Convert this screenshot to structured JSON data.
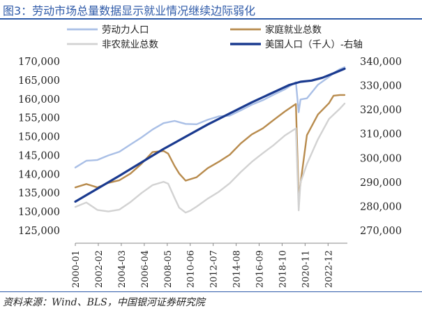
{
  "figure": {
    "title": "图3：劳动市场总量数据显示就业情况继续边际弱化",
    "source": "资料来源：Wind、BLS，中国银河证券研究院"
  },
  "chart_data": {
    "type": "line",
    "x_ticks": [
      "2000-01",
      "2002-02",
      "2004-03",
      "2006-04",
      "2008-05",
      "2010-06",
      "2012-07",
      "2014-08",
      "2016-09",
      "2018-10",
      "2020-11",
      "2022-12"
    ],
    "y_left": {
      "ylim": [
        125000,
        170000
      ],
      "ticks": [
        "125,000",
        "130,000",
        "135,000",
        "140,000",
        "145,000",
        "150,000",
        "155,000",
        "160,000",
        "165,000",
        "170,000"
      ]
    },
    "y_right": {
      "ylim": [
        270000,
        340000
      ],
      "ticks": [
        "270,000",
        "280,000",
        "290,000",
        "300,000",
        "310,000",
        "320,000",
        "330,000",
        "340,000"
      ],
      "label_suffix": "-右轴"
    },
    "legend": {
      "placement": "top",
      "ncols": 2
    },
    "series": [
      {
        "name": "劳动力人口",
        "axis": "left",
        "color": "#a9bfe6",
        "width": 2.4,
        "points": [
          [
            "2000-01",
            141800
          ],
          [
            "2001-01",
            143600
          ],
          [
            "2002-01",
            143800
          ],
          [
            "2003-01",
            145000
          ],
          [
            "2004-01",
            146000
          ],
          [
            "2005-01",
            147900
          ],
          [
            "2006-01",
            149800
          ],
          [
            "2007-01",
            151900
          ],
          [
            "2008-01",
            153600
          ],
          [
            "2009-01",
            154200
          ],
          [
            "2010-01",
            153400
          ],
          [
            "2011-01",
            153300
          ],
          [
            "2012-01",
            154500
          ],
          [
            "2013-01",
            155400
          ],
          [
            "2014-01",
            155600
          ],
          [
            "2015-01",
            157000
          ],
          [
            "2016-01",
            158500
          ],
          [
            "2017-01",
            159700
          ],
          [
            "2018-01",
            161200
          ],
          [
            "2019-01",
            162600
          ],
          [
            "2020-01",
            164500
          ],
          [
            "2020-04",
            156500
          ],
          [
            "2020-06",
            159900
          ],
          [
            "2021-01",
            160200
          ],
          [
            "2022-01",
            163800
          ],
          [
            "2023-01",
            165900
          ],
          [
            "2023-06",
            166900
          ],
          [
            "2024-01",
            168000
          ],
          [
            "2024-06",
            168500
          ]
        ]
      },
      {
        "name": "家庭就业总数",
        "axis": "left",
        "color": "#b88b4d",
        "width": 2.4,
        "points": [
          [
            "2000-01",
            136500
          ],
          [
            "2001-01",
            137400
          ],
          [
            "2002-01",
            136500
          ],
          [
            "2003-01",
            137700
          ],
          [
            "2004-01",
            138400
          ],
          [
            "2005-01",
            140200
          ],
          [
            "2006-01",
            142800
          ],
          [
            "2007-01",
            145900
          ],
          [
            "2008-01",
            146200
          ],
          [
            "2008-06",
            145500
          ],
          [
            "2009-01",
            142200
          ],
          [
            "2009-06",
            140200
          ],
          [
            "2010-01",
            138300
          ],
          [
            "2011-01",
            139200
          ],
          [
            "2012-01",
            141600
          ],
          [
            "2013-01",
            143300
          ],
          [
            "2014-01",
            145200
          ],
          [
            "2015-01",
            148200
          ],
          [
            "2016-01",
            150600
          ],
          [
            "2017-01",
            152200
          ],
          [
            "2018-01",
            154500
          ],
          [
            "2019-01",
            156700
          ],
          [
            "2020-01",
            158700
          ],
          [
            "2020-04",
            133400
          ],
          [
            "2020-06",
            137500
          ],
          [
            "2021-01",
            150400
          ],
          [
            "2022-01",
            155900
          ],
          [
            "2023-01",
            158900
          ],
          [
            "2023-06",
            160900
          ],
          [
            "2024-01",
            161100
          ],
          [
            "2024-06",
            161100
          ]
        ]
      },
      {
        "name": "非农就业总数",
        "axis": "left",
        "color": "#d2d2d2",
        "width": 2.4,
        "points": [
          [
            "2000-01",
            131300
          ],
          [
            "2001-01",
            132500
          ],
          [
            "2002-01",
            130500
          ],
          [
            "2003-01",
            130100
          ],
          [
            "2004-01",
            130600
          ],
          [
            "2005-01",
            132600
          ],
          [
            "2006-01",
            135000
          ],
          [
            "2007-01",
            137100
          ],
          [
            "2008-01",
            138000
          ],
          [
            "2008-06",
            137500
          ],
          [
            "2009-01",
            133700
          ],
          [
            "2009-06",
            131100
          ],
          [
            "2010-01",
            129800
          ],
          [
            "2010-06",
            130300
          ],
          [
            "2011-01",
            131400
          ],
          [
            "2012-01",
            133500
          ],
          [
            "2013-01",
            135300
          ],
          [
            "2014-01",
            137600
          ],
          [
            "2015-01",
            140600
          ],
          [
            "2016-01",
            143300
          ],
          [
            "2017-01",
            145600
          ],
          [
            "2018-01",
            147800
          ],
          [
            "2019-01",
            150300
          ],
          [
            "2020-01",
            152200
          ],
          [
            "2020-04",
            130400
          ],
          [
            "2020-06",
            137800
          ],
          [
            "2021-01",
            142700
          ],
          [
            "2022-01",
            149300
          ],
          [
            "2023-01",
            154700
          ],
          [
            "2024-01",
            157500
          ],
          [
            "2024-06",
            158800
          ]
        ]
      },
      {
        "name": "美国人口（千人）",
        "axis": "right",
        "color": "#1a3a8f",
        "width": 3.2,
        "points": [
          [
            "2000-01",
            282000
          ],
          [
            "2004-01",
            292700
          ],
          [
            "2008-01",
            303800
          ],
          [
            "2012-01",
            313900
          ],
          [
            "2016-01",
            323100
          ],
          [
            "2019-06",
            330300
          ],
          [
            "2020-06",
            331600
          ],
          [
            "2021-06",
            332100
          ],
          [
            "2022-06",
            333300
          ],
          [
            "2023-06",
            335100
          ],
          [
            "2024-06",
            337000
          ]
        ]
      }
    ]
  }
}
